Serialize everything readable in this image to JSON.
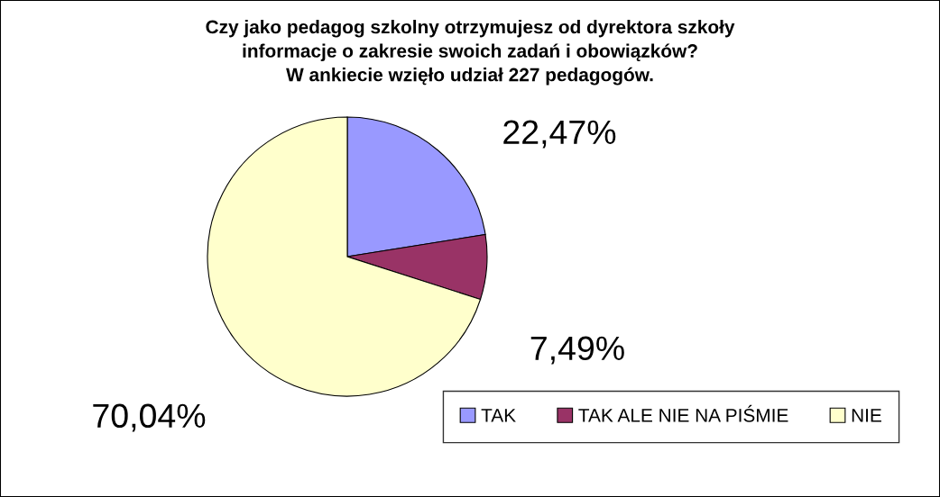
{
  "chart_data": {
    "type": "pie",
    "title": "Czy jako pedagog szkolny otrzymujesz od dyrektora szkoły\ninformacje o zakresie swoich zadań i obowiązków?\nW ankiecie wzięło udział 227 pedagogów.",
    "categories": [
      "TAK",
      "TAK ALE NIE NA PIŚMIE",
      "NIE"
    ],
    "values": [
      22.47,
      7.49,
      70.04
    ],
    "colors": [
      "#9999ff",
      "#993366",
      "#ffffcc"
    ],
    "value_labels": [
      "22,47%",
      "7,49%",
      "70,04%"
    ],
    "legend": "bottom right"
  }
}
